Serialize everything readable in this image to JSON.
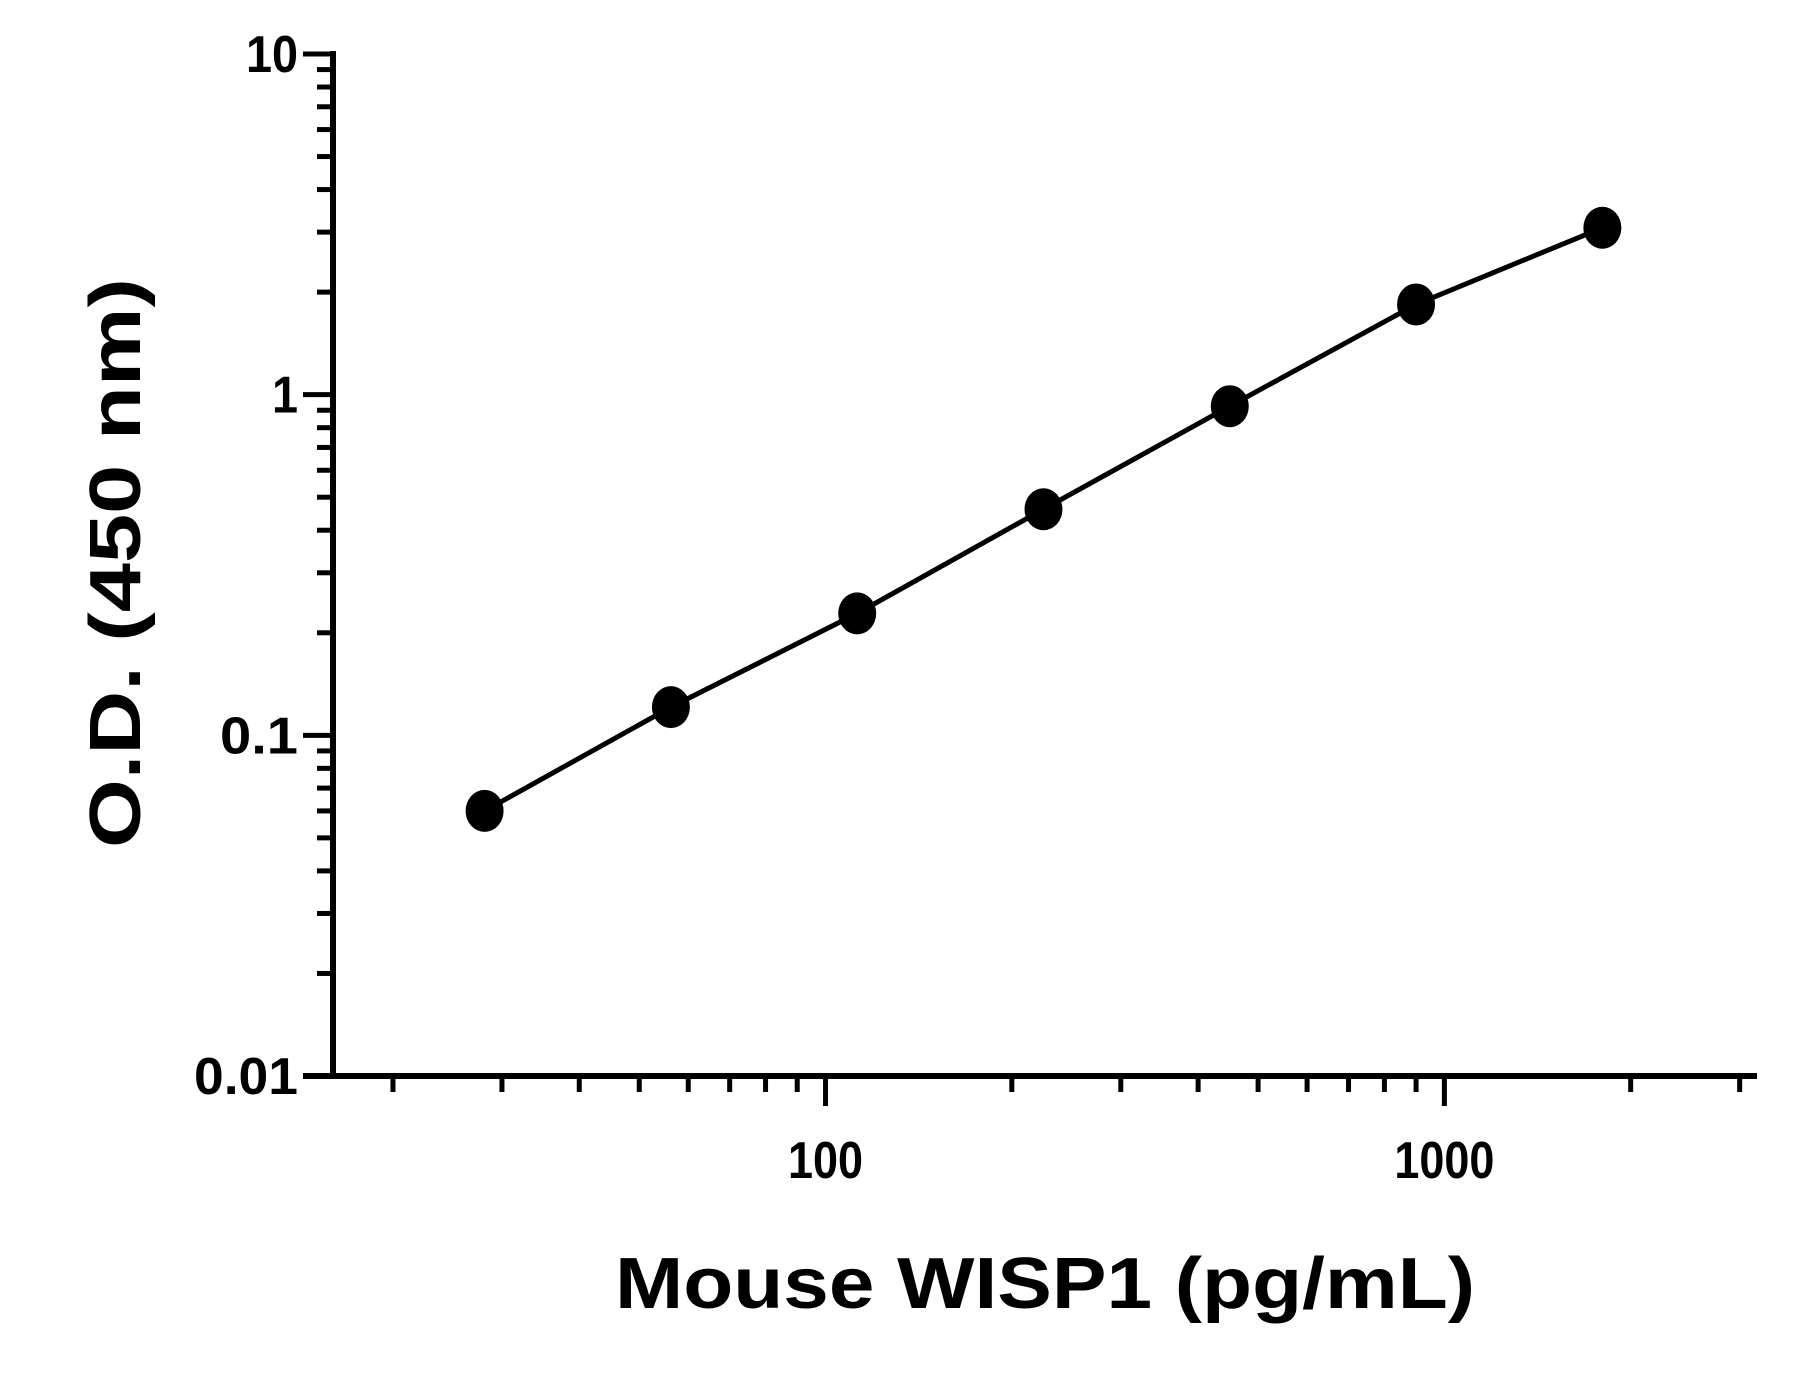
{
  "chart_data": {
    "type": "line",
    "title": "",
    "xlabel": "Mouse WISP1 (pg/mL)",
    "ylabel": "O.D. (450 nm)",
    "x_scale": "log",
    "y_scale": "log",
    "xlim": [
      16,
      3200
    ],
    "ylim": [
      0.01,
      10
    ],
    "x_ticks": [
      {
        "value": 100,
        "label": "100"
      },
      {
        "value": 1000,
        "label": "1000"
      }
    ],
    "y_ticks": [
      {
        "value": 0.01,
        "label": "0.01"
      },
      {
        "value": 0.1,
        "label": "0.1"
      },
      {
        "value": 1,
        "label": "1"
      },
      {
        "value": 10,
        "label": "10"
      }
    ],
    "grid": false,
    "legend": "none",
    "color": "#000000",
    "series": [
      {
        "x": [
          28.125,
          56.25,
          112.5,
          225,
          450,
          900,
          1800
        ],
        "y": [
          0.06,
          0.121,
          0.228,
          0.461,
          0.925,
          1.84,
          3.09
        ],
        "marker": "circle"
      }
    ]
  }
}
